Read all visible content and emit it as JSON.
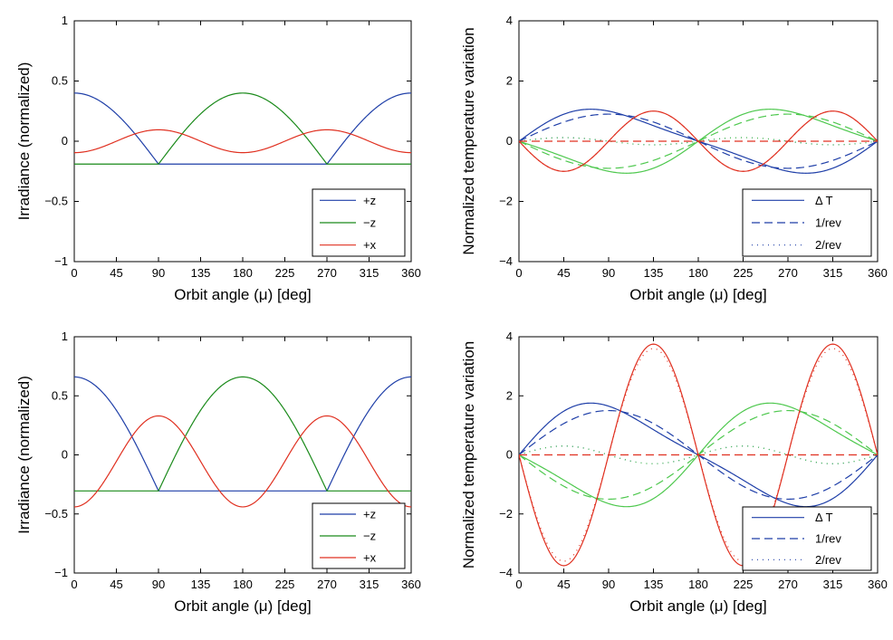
{
  "chart_data": [
    {
      "type": "line",
      "xlabel": "Orbit angle (μ) [deg]",
      "ylabel": "Irradiance (normalized)",
      "xlim": [
        0,
        360
      ],
      "ylim": [
        -1,
        1
      ],
      "xticks": [
        0,
        45,
        90,
        135,
        180,
        225,
        270,
        315,
        360
      ],
      "yticks": [
        -1,
        -0.5,
        0,
        0.5,
        1
      ],
      "ytick_labels": [
        "−1",
        "−0.5",
        "0",
        "0.5",
        "1"
      ],
      "grid": false,
      "legend_position": "bottom-right",
      "params": {
        "a": 0.4,
        "b": 0.19,
        "c": 0.095
      },
      "series": [
        {
          "name": "+z",
          "color": "#1f3fa8",
          "style": "solid",
          "x": [
            0,
            45,
            90,
            135,
            180,
            225,
            270,
            315,
            360
          ],
          "y": [
            0.4,
            0.09,
            -0.19,
            -0.19,
            -0.19,
            -0.19,
            -0.19,
            0.09,
            0.4
          ]
        },
        {
          "name": "−z",
          "color": "#1a8a1a",
          "style": "solid",
          "x": [
            0,
            45,
            90,
            135,
            180,
            225,
            270,
            315,
            360
          ],
          "y": [
            -0.19,
            -0.19,
            -0.19,
            0.09,
            0.4,
            0.09,
            -0.19,
            -0.19,
            -0.19
          ]
        },
        {
          "name": "+x",
          "color": "#e03020",
          "style": "solid",
          "x": [
            0,
            45,
            90,
            135,
            180,
            225,
            270,
            315,
            360
          ],
          "y": [
            -0.095,
            0.0,
            0.095,
            0.0,
            -0.095,
            0.0,
            0.095,
            0.0,
            -0.095
          ]
        }
      ]
    },
    {
      "type": "line",
      "xlabel": "Orbit angle (μ) [deg]",
      "ylabel": "Normalized temperature variation",
      "xlim": [
        0,
        360
      ],
      "ylim": [
        -4,
        4
      ],
      "xticks": [
        0,
        45,
        90,
        135,
        180,
        225,
        270,
        315,
        360
      ],
      "yticks": [
        -4,
        -2,
        0,
        2,
        4
      ],
      "ytick_labels": [
        "−4",
        "−2",
        "0",
        "2",
        "4"
      ],
      "grid": false,
      "legend_position": "bottom-right",
      "params": {
        "A": 1.0,
        "B": 0.9,
        "C": 0.12,
        "R": 1.0,
        "R1": 0.0,
        "R2": 1.0
      },
      "legend": [
        {
          "label": "Δ T",
          "style": "solid"
        },
        {
          "label": "1/rev",
          "style": "dashed"
        },
        {
          "label": "2/rev",
          "style": "dotted"
        }
      ],
      "series": [
        {
          "name": "+z",
          "color": "#1f3fa8",
          "style": "solid",
          "x": [
            0,
            72,
            180,
            288,
            360
          ],
          "y": [
            0,
            1.0,
            0,
            -1.0,
            0
          ]
        },
        {
          "name": "−z",
          "color": "#4ec84e",
          "style": "solid",
          "x": [
            0,
            108,
            180,
            252,
            360
          ],
          "y": [
            0,
            -0.95,
            0,
            1.0,
            0
          ]
        },
        {
          "name": "+x",
          "color": "#e03020",
          "style": "solid",
          "x": [
            0,
            45,
            135,
            225,
            315,
            360
          ],
          "y": [
            0,
            -1.0,
            1.0,
            -1.0,
            1.0,
            0
          ]
        }
      ]
    },
    {
      "type": "line",
      "xlabel": "Orbit angle (μ) [deg]",
      "ylabel": "Irradiance (normalized)",
      "xlim": [
        0,
        360
      ],
      "ylim": [
        -1,
        1
      ],
      "xticks": [
        0,
        45,
        90,
        135,
        180,
        225,
        270,
        315,
        360
      ],
      "yticks": [
        -1,
        -0.5,
        0,
        0.5,
        1
      ],
      "ytick_labels": [
        "−1",
        "−0.5",
        "0",
        "0.5",
        "1"
      ],
      "grid": false,
      "legend_position": "bottom-right",
      "params": {
        "a": 0.66,
        "b": 0.305,
        "c": 0.33,
        "d": 0.44
      },
      "series": [
        {
          "name": "+z",
          "color": "#1f3fa8",
          "style": "solid",
          "x": [
            0,
            45,
            90,
            135,
            180,
            225,
            270,
            315,
            360
          ],
          "y": [
            0.66,
            0.16,
            -0.305,
            -0.305,
            -0.305,
            -0.305,
            -0.305,
            0.16,
            0.66
          ]
        },
        {
          "name": "−z",
          "color": "#1a8a1a",
          "style": "solid",
          "x": [
            0,
            45,
            90,
            135,
            180,
            225,
            270,
            315,
            360
          ],
          "y": [
            -0.305,
            -0.305,
            -0.305,
            0.16,
            0.66,
            0.16,
            -0.305,
            -0.305,
            -0.305
          ]
        },
        {
          "name": "+x",
          "color": "#e03020",
          "style": "solid",
          "x": [
            0,
            45,
            90,
            135,
            180,
            225,
            270,
            315,
            360
          ],
          "y": [
            -0.44,
            0.2,
            0.33,
            0.2,
            -0.44,
            0.2,
            0.33,
            0.2,
            -0.44
          ]
        }
      ]
    },
    {
      "type": "line",
      "xlabel": "Orbit angle (μ) [deg]",
      "ylabel": "Normalized temperature variation",
      "xlim": [
        0,
        360
      ],
      "ylim": [
        -4,
        4
      ],
      "xticks": [
        0,
        45,
        90,
        135,
        180,
        225,
        270,
        315,
        360
      ],
      "yticks": [
        -4,
        -2,
        0,
        2,
        4
      ],
      "ytick_labels": [
        "−4",
        "−2",
        "0",
        "2",
        "4"
      ],
      "grid": false,
      "legend_position": "bottom-right",
      "params": {
        "A": 1.65,
        "B": 1.5,
        "C": 0.3,
        "R": 3.75,
        "R1": 0.0,
        "R2": 3.6
      },
      "legend": [
        {
          "label": "Δ T",
          "style": "solid"
        },
        {
          "label": "1/rev",
          "style": "dashed"
        },
        {
          "label": "2/rev",
          "style": "dotted"
        }
      ],
      "series": [
        {
          "name": "+z",
          "color": "#1f3fa8",
          "style": "solid",
          "x": [
            0,
            72,
            180,
            288,
            360
          ],
          "y": [
            0,
            1.65,
            0,
            -1.65,
            0
          ]
        },
        {
          "name": "−z",
          "color": "#4ec84e",
          "style": "solid",
          "x": [
            0,
            108,
            180,
            252,
            360
          ],
          "y": [
            0,
            -1.65,
            0,
            1.65,
            0
          ]
        },
        {
          "name": "+x",
          "color": "#e03020",
          "style": "solid",
          "x": [
            0,
            45,
            135,
            225,
            315,
            360
          ],
          "y": [
            0,
            -3.75,
            3.75,
            -3.75,
            3.75,
            0
          ]
        }
      ]
    }
  ],
  "colors": {
    "plus_z": "#1f3fa8",
    "minus_z_irradiance": "#1a8a1a",
    "minus_z_temperature": "#4ec84e",
    "plus_x": "#e03020"
  }
}
